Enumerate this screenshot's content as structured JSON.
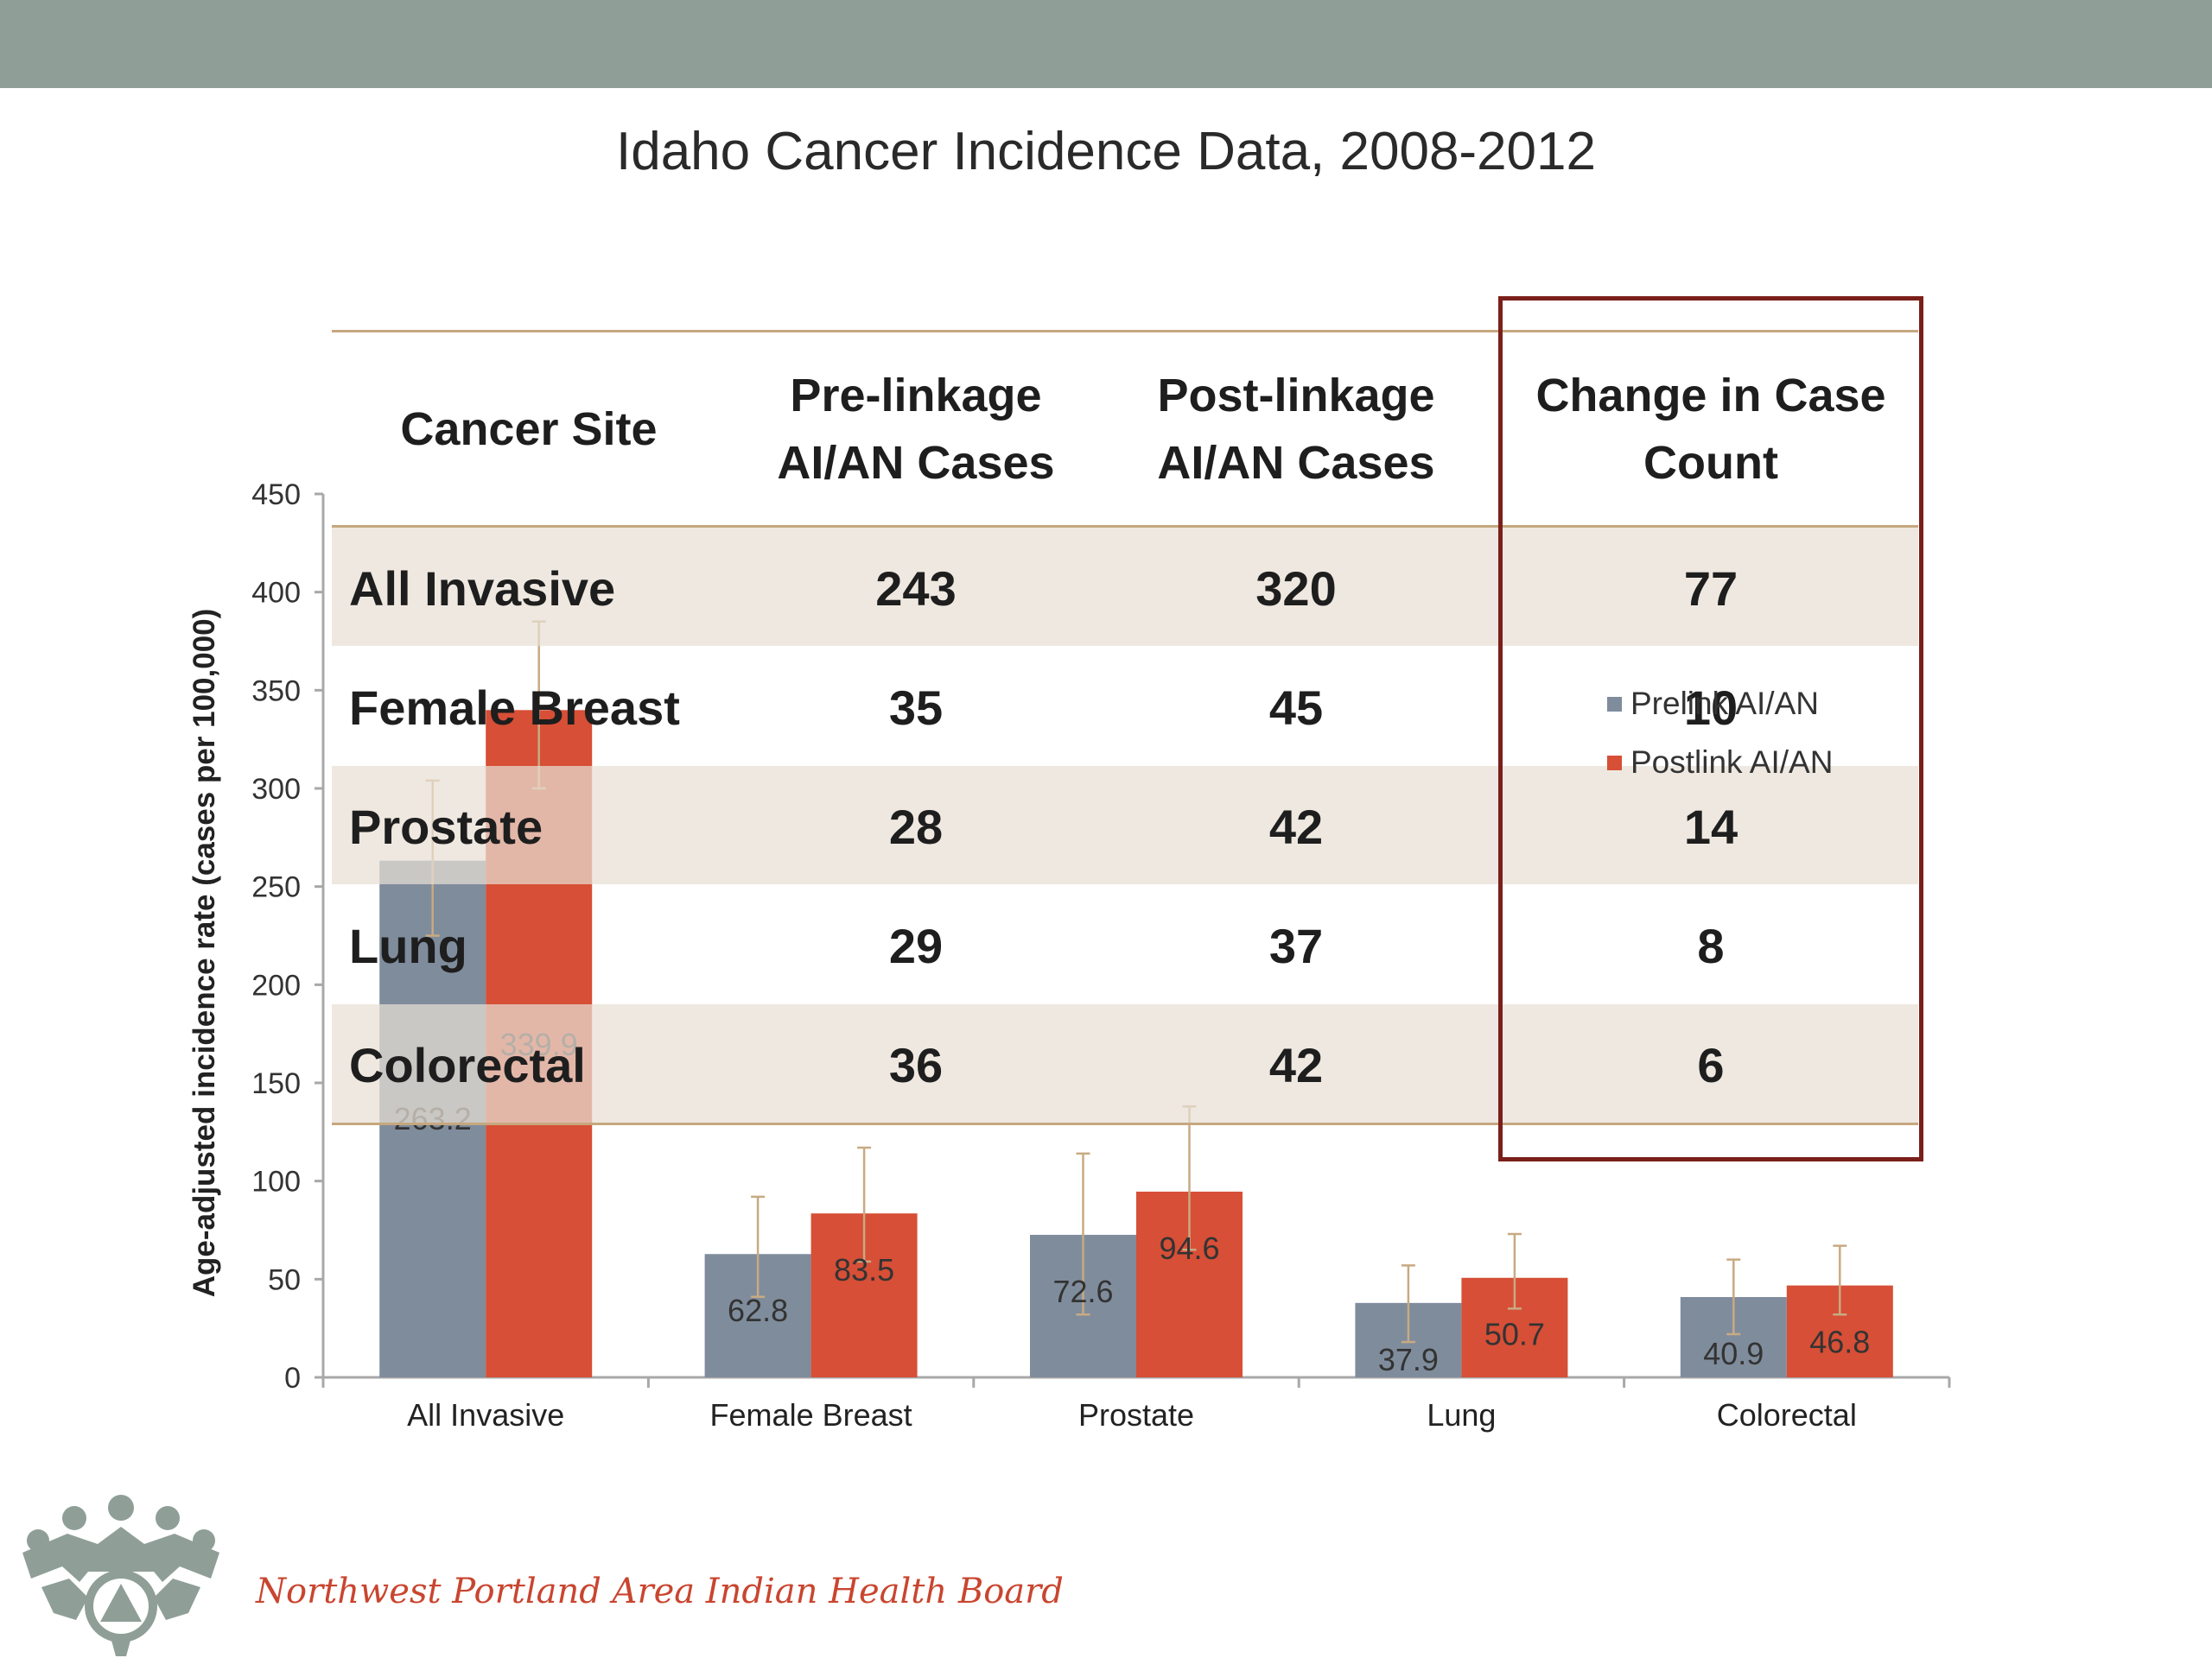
{
  "slide": {
    "title": "Idaho Cancer Incidence Data, 2008-2012",
    "organization": "Northwest Portland Area Indian Health Board",
    "colors": {
      "top_bar": "#8f9f98",
      "highlight_box": "#7a1f1a",
      "org_text": "#c9452f"
    }
  },
  "chart_data": {
    "type": "bar",
    "title": "",
    "xlabel": "",
    "ylabel": "Age-adjusted incidence rate (cases per 100,000)",
    "ylim": [
      0,
      450
    ],
    "yticks": [
      0,
      50,
      100,
      150,
      200,
      250,
      300,
      350,
      400,
      450
    ],
    "categories": [
      "All Invasive",
      "Female Breast",
      "Prostate",
      "Lung",
      "Colorectal"
    ],
    "legend_position": "right",
    "series": [
      {
        "name": "Prelink AI/AN",
        "color": "#7f8c9c",
        "values": [
          263.2,
          62.8,
          72.6,
          37.9,
          40.9
        ],
        "labels": [
          "263.2",
          "62.8",
          "72.6",
          "37.9",
          "40.9"
        ],
        "error_low": [
          225,
          41,
          32,
          18,
          22
        ],
        "error_high": [
          304,
          92,
          114,
          57,
          60
        ]
      },
      {
        "name": "Postlink AI/AN",
        "color": "#d64f36",
        "values": [
          339.9,
          83.5,
          94.6,
          50.7,
          46.8
        ],
        "labels": [
          "339.9",
          "83.5",
          "94.6",
          "50.7",
          "46.8"
        ],
        "error_low": [
          300,
          59,
          65,
          35,
          32
        ],
        "error_high": [
          385,
          117,
          138,
          73,
          67
        ]
      }
    ]
  },
  "table": {
    "headers": [
      "Cancer Site",
      "Pre-linkage\nAI/AN Cases",
      "Post-linkage\nAI/AN Cases",
      "Change in Case\nCount"
    ],
    "rows": [
      [
        "All Invasive",
        "243",
        "320",
        "77"
      ],
      [
        "Female Breast",
        "35",
        "45",
        "10"
      ],
      [
        "Prostate",
        "28",
        "42",
        "14"
      ],
      [
        "Lung",
        "29",
        "37",
        "8"
      ],
      [
        "Colorectal",
        "36",
        "42",
        "6"
      ]
    ]
  }
}
